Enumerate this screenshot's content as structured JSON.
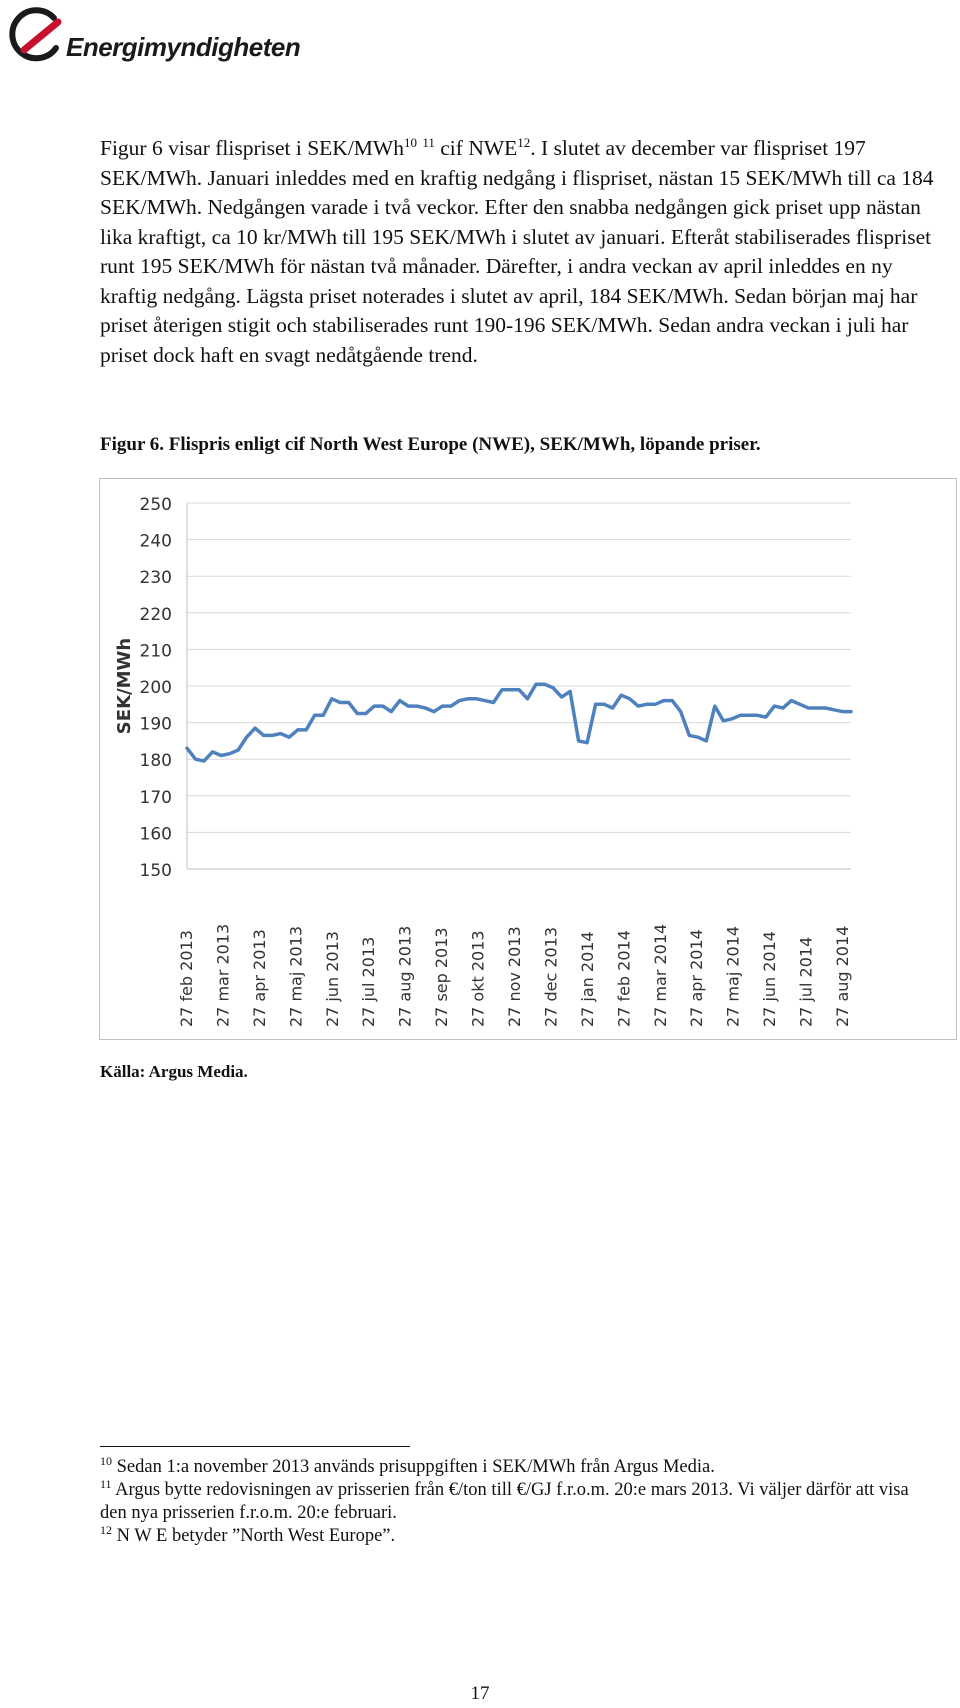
{
  "header": {
    "logo_text": "Energimyndigheten",
    "colors": {
      "logo_red": "#c8102e",
      "logo_dark": "#1a1a1a"
    }
  },
  "body": {
    "seg1": "Figur 6 visar flispriset i SEK/MWh",
    "sup_a": "10",
    "sup_b": "11",
    "seg2": " cif NWE",
    "sup_c": "12",
    "seg3": ". I slutet av december var flispriset 197 SEK/MWh. Januari inleddes med en kraftig nedgång i flispriset, nästan 15 SEK/MWh till ca 184 SEK/MWh. Nedgången varade i två veckor. Efter den snabba nedgången gick priset upp nästan lika kraftigt, ca 10 kr/MWh till 195 SEK/MWh i slutet av januari. Efteråt stabiliserades flispriset runt 195 SEK/MWh för nästan två månader. Därefter, i andra veckan av april inleddes en ny kraftig nedgång. Lägsta priset noterades i slutet av april, 184 SEK/MWh. Sedan början maj har priset återigen stigit och stabiliserades runt 190-196 SEK/MWh. Sedan andra veckan i juli har priset dock haft en svagt nedåtgående trend."
  },
  "figure": {
    "caption": "Figur 6. Flispris enligt cif North West Europe (NWE), SEK/MWh, löpande priser.",
    "source": "Källa: Argus Media."
  },
  "chart_data": {
    "type": "line",
    "ylabel": "SEK/MWh",
    "ylim": [
      150,
      250
    ],
    "yticks": [
      "250",
      "240",
      "230",
      "220",
      "210",
      "200",
      "190",
      "180",
      "170",
      "160",
      "150"
    ],
    "grid": true,
    "legend": "none",
    "line_color": "#4f81bd",
    "x_labels": [
      "27 feb 2013",
      "27 mar 2013",
      "27 apr 2013",
      "27 maj 2013",
      "27 jun 2013",
      "27 jul 2013",
      "27 aug 2013",
      "27 sep 2013",
      "27 okt 2013",
      "27 nov 2013",
      "27 dec 2013",
      "27 jan 2014",
      "27 feb 2014",
      "27 mar 2014",
      "27 apr 2014",
      "27 maj 2014",
      "27 jun 2014",
      "27 jul 2014",
      "27 aug 2014"
    ],
    "series": [
      {
        "values": [
          183,
          180,
          179.5,
          182,
          181,
          181.5,
          182.5,
          186,
          188.5,
          186.5,
          186.5,
          187,
          186,
          188,
          188,
          192,
          192,
          196.5,
          195.5,
          195.5,
          192.5,
          192.5,
          194.5,
          194.5,
          193,
          196,
          194.5,
          194.5,
          194,
          193,
          194.5,
          194.5,
          196,
          196.5,
          196.5,
          196,
          195.5,
          199,
          199,
          199,
          196.5,
          200.5,
          200.5,
          199.5,
          197,
          198.5,
          185,
          184.5,
          195,
          195,
          194,
          197.5,
          196.5,
          194.5,
          195,
          195,
          196,
          196,
          193,
          186.5,
          186,
          185,
          194.5,
          190.5,
          191,
          192,
          192,
          192,
          191.5,
          194.5,
          194,
          196,
          195,
          194,
          194,
          194,
          193.5,
          193,
          193
        ]
      }
    ]
  },
  "footnotes": [
    {
      "num": "10",
      "text": " Sedan 1:a november 2013 används prisuppgiften i SEK/MWh från Argus Media."
    },
    {
      "num": "11",
      "text": " Argus bytte redovisningen av prisserien från €/ton till €/GJ f.r.o.m. 20:e mars 2013. Vi väljer därför att visa den nya prisserien f.r.o.m. 20:e februari."
    },
    {
      "num": "12",
      "text": " N W E betyder ”North West Europe”."
    }
  ],
  "page_number": "17"
}
